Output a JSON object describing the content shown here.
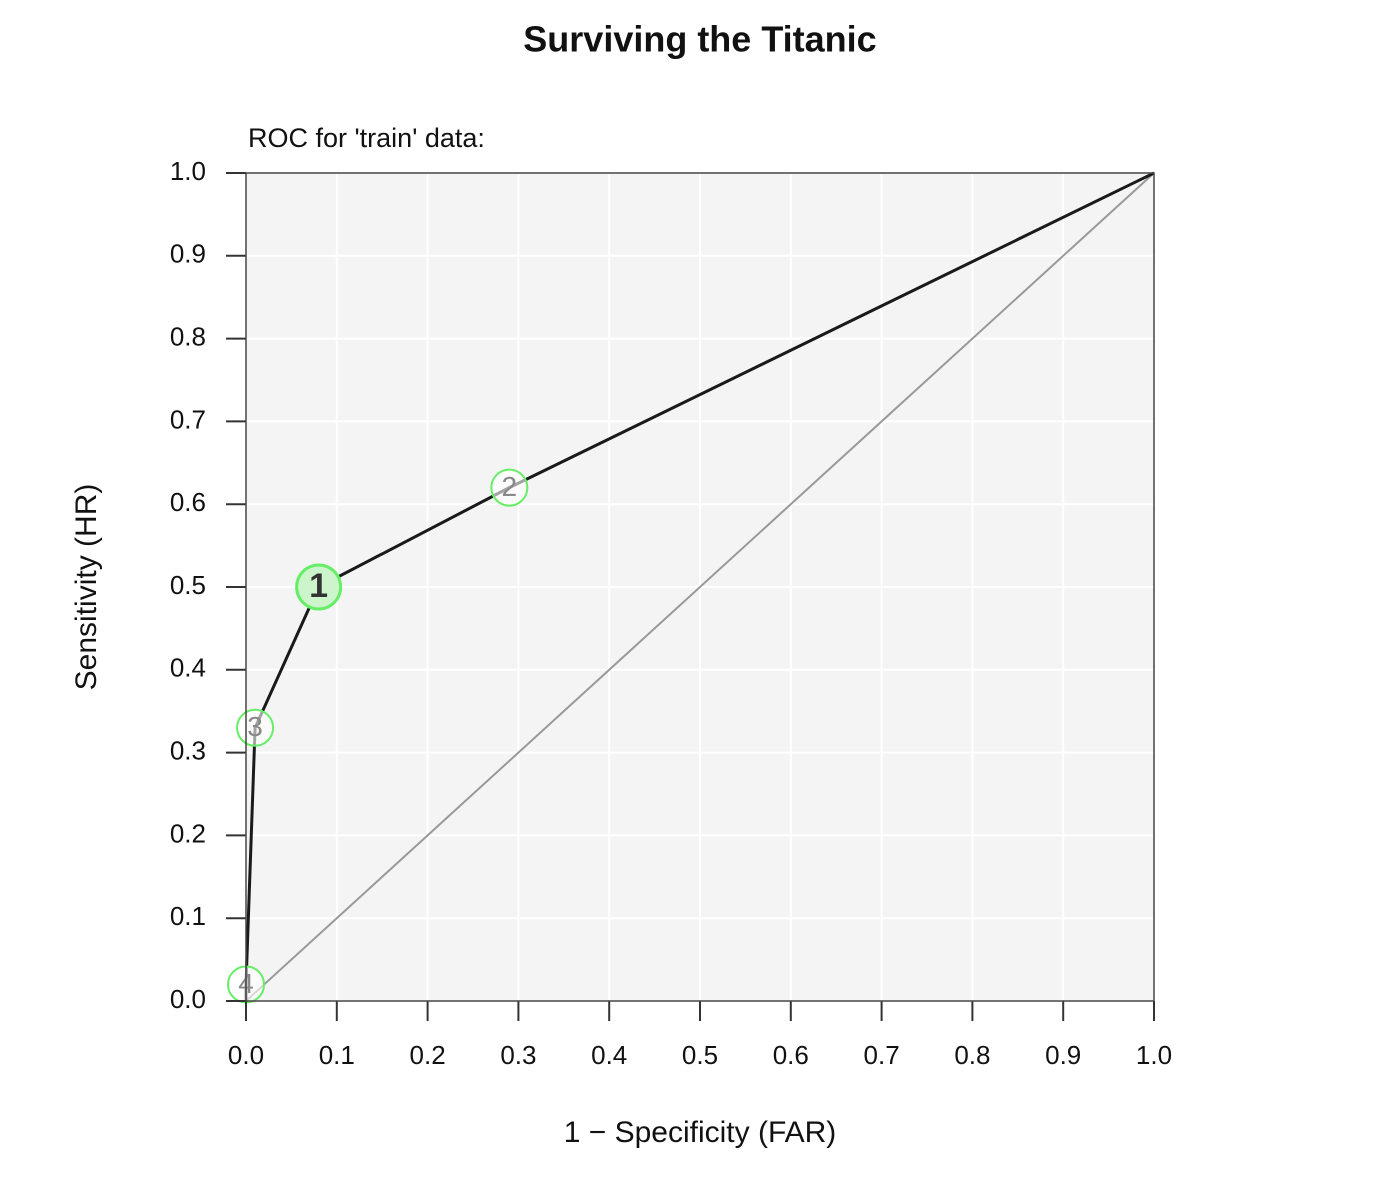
{
  "chart_data": {
    "type": "line",
    "title": "Surviving the Titanic",
    "subtitle": "ROC for 'train' data:",
    "x_label": "1 − Specificity (FAR)",
    "y_label": "Sensitivity (HR)",
    "x": [
      0,
      0,
      0.01,
      0.08,
      0.29,
      1
    ],
    "series": [
      {
        "color": "#1a1a1a",
        "values": [
          0,
          0.02,
          0.33,
          0.5,
          0.62,
          1
        ]
      }
    ],
    "point_labels": [
      null,
      "4",
      "3",
      "1",
      "2",
      null
    ],
    "highlight": "1",
    "marker_color": "#66ee66",
    "diagonal": true,
    "xlim": [
      0,
      1
    ],
    "ylim": [
      0,
      1
    ],
    "xticks": [
      {
        "value": 0,
        "label": "0.0"
      },
      0.1,
      0.2,
      0.3,
      0.4,
      0.5,
      0.6,
      0.7,
      0.8,
      0.9,
      {
        "value": 1,
        "label": "1.0"
      }
    ],
    "yticks": [
      {
        "value": 0,
        "label": "0.0"
      },
      0.1,
      0.2,
      0.3,
      0.4,
      0.5,
      0.6,
      0.7,
      0.8,
      0.9,
      {
        "value": 1,
        "label": "1.0"
      }
    ],
    "grid": true
  }
}
